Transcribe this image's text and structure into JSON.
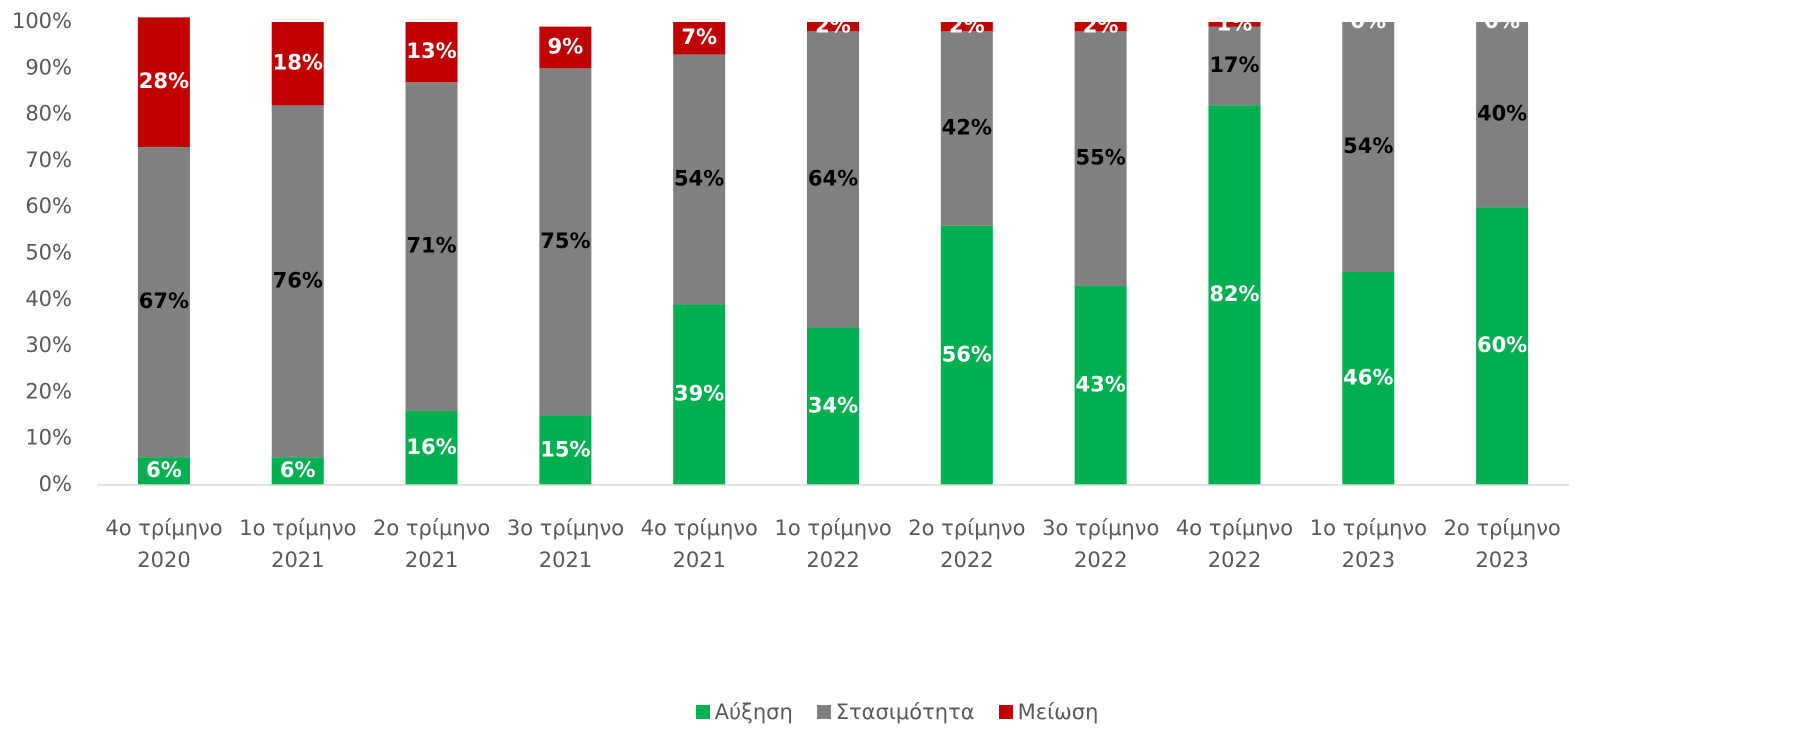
{
  "chart_data": {
    "type": "stacked_bar",
    "categories": [
      "4ο τρίμηνο 2020",
      "1ο τρίμηνο 2021",
      "2ο τρίμηνο 2021",
      "3ο τρίμηνο 2021",
      "4ο τρίμηνο 2021",
      "1ο τρίμηνο 2022",
      "2ο τρίμηνο 2022",
      "3ο τρίμηνο 2022",
      "4ο τρίμηνο 2022",
      "1ο τρίμηνο 2023",
      "2ο τρίμηνο 2023"
    ],
    "series": [
      {
        "name": "Αύξηση",
        "color": "#00b050",
        "label_color": "#ffffff",
        "values": [
          6,
          6,
          16,
          15,
          39,
          34,
          56,
          43,
          82,
          46,
          60
        ],
        "value_labels": [
          "6%",
          "6%",
          "16%",
          "15%",
          "39%",
          "34%",
          "56%",
          "43%",
          "82%",
          "46%",
          "60%"
        ]
      },
      {
        "name": "Στασιμότητα",
        "color": "#808080",
        "label_color": "#000000",
        "values": [
          67,
          76,
          71,
          75,
          54,
          64,
          42,
          55,
          17,
          54,
          40
        ],
        "value_labels": [
          "67%",
          "76%",
          "71%",
          "75%",
          "54%",
          "64%",
          "42%",
          "55%",
          "17%",
          "54%",
          "40%"
        ]
      },
      {
        "name": "Μείωση",
        "color": "#c00000",
        "label_color": "#ffffff",
        "values": [
          28,
          18,
          13,
          9,
          7,
          2,
          2,
          2,
          1,
          0,
          0
        ],
        "value_labels": [
          "28%",
          "18%",
          "13%",
          "9%",
          "7%",
          "2%",
          "2%",
          "2%",
          "1%",
          "0%",
          "0%"
        ]
      }
    ],
    "ylim": [
      0,
      100
    ],
    "yticks": [
      {
        "value": 0,
        "label": "0%"
      },
      {
        "value": 10,
        "label": "10%"
      },
      {
        "value": 20,
        "label": "20%"
      },
      {
        "value": 30,
        "label": "30%"
      },
      {
        "value": 40,
        "label": "40%"
      },
      {
        "value": 50,
        "label": "50%"
      },
      {
        "value": 60,
        "label": "60%"
      },
      {
        "value": 70,
        "label": "70%"
      },
      {
        "value": 80,
        "label": "80%"
      },
      {
        "value": 90,
        "label": "90%"
      },
      {
        "value": 100,
        "label": "100%"
      }
    ],
    "grid": false,
    "legend": "bottom"
  }
}
